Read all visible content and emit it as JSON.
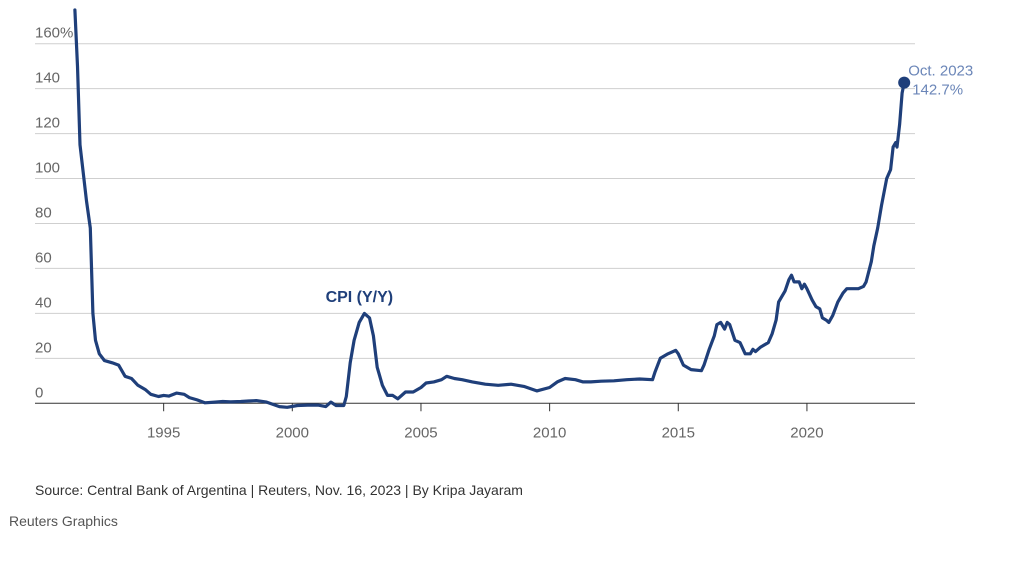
{
  "chart_data": {
    "type": "line",
    "title": "",
    "series": [
      {
        "name": "CPI (Y/Y)",
        "color": "#1f3f7a",
        "points": [
          [
            1991.55,
            175
          ],
          [
            1991.65,
            150
          ],
          [
            1991.75,
            115
          ],
          [
            1991.9,
            100
          ],
          [
            1992.0,
            90
          ],
          [
            1992.15,
            78
          ],
          [
            1992.25,
            40
          ],
          [
            1992.35,
            28
          ],
          [
            1992.5,
            22
          ],
          [
            1992.7,
            19
          ],
          [
            1993.0,
            18
          ],
          [
            1993.25,
            17
          ],
          [
            1993.5,
            12
          ],
          [
            1993.75,
            11
          ],
          [
            1994.0,
            8
          ],
          [
            1994.3,
            6
          ],
          [
            1994.5,
            4
          ],
          [
            1994.8,
            3
          ],
          [
            1995.0,
            3.5
          ],
          [
            1995.2,
            3.2
          ],
          [
            1995.5,
            4.5
          ],
          [
            1995.8,
            4
          ],
          [
            1996.0,
            2.5
          ],
          [
            1996.3,
            1.5
          ],
          [
            1996.6,
            0.2
          ],
          [
            1997.0,
            0.5
          ],
          [
            1997.3,
            0.8
          ],
          [
            1997.6,
            0.6
          ],
          [
            1998.0,
            0.8
          ],
          [
            1998.3,
            1
          ],
          [
            1998.6,
            1.2
          ],
          [
            1999.0,
            0.5
          ],
          [
            1999.5,
            -1.5
          ],
          [
            1999.8,
            -1.8
          ],
          [
            2000.2,
            -1
          ],
          [
            2000.6,
            -0.8
          ],
          [
            2001.0,
            -0.8
          ],
          [
            2001.3,
            -1.5
          ],
          [
            2001.5,
            0.5
          ],
          [
            2001.7,
            -1
          ],
          [
            2002.0,
            -1
          ],
          [
            2002.1,
            3
          ],
          [
            2002.25,
            18
          ],
          [
            2002.4,
            28
          ],
          [
            2002.6,
            36
          ],
          [
            2002.8,
            40
          ],
          [
            2003.0,
            38
          ],
          [
            2003.15,
            30
          ],
          [
            2003.3,
            16
          ],
          [
            2003.5,
            8
          ],
          [
            2003.7,
            3.5
          ],
          [
            2003.9,
            3.5
          ],
          [
            2004.1,
            2
          ],
          [
            2004.4,
            5
          ],
          [
            2004.7,
            5
          ],
          [
            2005.0,
            7
          ],
          [
            2005.2,
            9
          ],
          [
            2005.5,
            9.5
          ],
          [
            2005.8,
            10.5
          ],
          [
            2006.0,
            12
          ],
          [
            2006.3,
            11
          ],
          [
            2006.6,
            10.5
          ],
          [
            2007.0,
            9.5
          ],
          [
            2007.5,
            8.5
          ],
          [
            2008.0,
            8
          ],
          [
            2008.5,
            8.5
          ],
          [
            2009.0,
            7.5
          ],
          [
            2009.5,
            5.5
          ],
          [
            2010.0,
            7
          ],
          [
            2010.3,
            9.5
          ],
          [
            2010.6,
            11
          ],
          [
            2011.0,
            10.5
          ],
          [
            2011.3,
            9.5
          ],
          [
            2011.6,
            9.5
          ],
          [
            2012.0,
            9.8
          ],
          [
            2012.5,
            10
          ],
          [
            2013.0,
            10.5
          ],
          [
            2013.5,
            10.8
          ],
          [
            2014.0,
            10.5
          ],
          [
            2014.1,
            14
          ],
          [
            2014.3,
            20
          ],
          [
            2014.6,
            22
          ],
          [
            2014.9,
            23.5
          ],
          [
            2015.0,
            22
          ],
          [
            2015.2,
            17
          ],
          [
            2015.5,
            15
          ],
          [
            2015.9,
            14.5
          ],
          [
            2016.0,
            17
          ],
          [
            2016.2,
            24
          ],
          [
            2016.4,
            30
          ],
          [
            2016.5,
            35
          ],
          [
            2016.65,
            36
          ],
          [
            2016.8,
            33
          ],
          [
            2016.9,
            36
          ],
          [
            2017.0,
            35
          ],
          [
            2017.2,
            28
          ],
          [
            2017.4,
            27
          ],
          [
            2017.6,
            22
          ],
          [
            2017.8,
            22
          ],
          [
            2017.9,
            24
          ],
          [
            2018.0,
            23
          ],
          [
            2018.2,
            25
          ],
          [
            2018.5,
            27
          ],
          [
            2018.65,
            31
          ],
          [
            2018.8,
            37
          ],
          [
            2018.9,
            45
          ],
          [
            2019.0,
            47
          ],
          [
            2019.15,
            50
          ],
          [
            2019.3,
            55
          ],
          [
            2019.4,
            57
          ],
          [
            2019.5,
            54
          ],
          [
            2019.7,
            54
          ],
          [
            2019.8,
            51
          ],
          [
            2019.9,
            53
          ],
          [
            2020.0,
            51
          ],
          [
            2020.2,
            46
          ],
          [
            2020.35,
            43
          ],
          [
            2020.5,
            42
          ],
          [
            2020.6,
            38
          ],
          [
            2020.75,
            37
          ],
          [
            2020.85,
            36
          ],
          [
            2021.0,
            39
          ],
          [
            2021.2,
            45
          ],
          [
            2021.4,
            49
          ],
          [
            2021.55,
            51
          ],
          [
            2021.7,
            51
          ],
          [
            2021.85,
            51
          ],
          [
            2022.0,
            51
          ],
          [
            2022.2,
            52
          ],
          [
            2022.3,
            54
          ],
          [
            2022.5,
            63
          ],
          [
            2022.6,
            70
          ],
          [
            2022.75,
            78
          ],
          [
            2022.9,
            88
          ],
          [
            2023.0,
            94
          ],
          [
            2023.1,
            100
          ],
          [
            2023.25,
            104
          ],
          [
            2023.35,
            114
          ],
          [
            2023.45,
            116
          ],
          [
            2023.5,
            114
          ],
          [
            2023.6,
            124
          ],
          [
            2023.7,
            138
          ],
          [
            2023.78,
            142.7
          ]
        ]
      }
    ],
    "series_label": "CPI (Y/Y)",
    "series_label_at": [
      2002.8,
      45
    ],
    "endpoint": {
      "x": 2023.78,
      "y": 142.7,
      "label_line1": "Oct. 2023",
      "label_line2": "142.7%"
    },
    "xlim": [
      1990.0,
      2024.2
    ],
    "ylim": [
      -3,
      175
    ],
    "x_ticks": [
      1995,
      2000,
      2005,
      2010,
      2015,
      2020
    ],
    "x_tick_labels": [
      "1995",
      "2000",
      "2005",
      "2010",
      "2015",
      "2020"
    ],
    "y_ticks": [
      0,
      20,
      40,
      60,
      80,
      100,
      120,
      140,
      160
    ],
    "y_tick_labels": [
      "0",
      "20",
      "40",
      "60",
      "80",
      "100",
      "120",
      "140",
      "160%"
    ],
    "xlabel": "",
    "ylabel": "",
    "grid": true,
    "legend": "none"
  },
  "footer": {
    "source": "Source: Central Bank of Argentina | Reuters, Nov. 16, 2023 | By Kripa Jayaram",
    "brand": "Reuters Graphics"
  }
}
